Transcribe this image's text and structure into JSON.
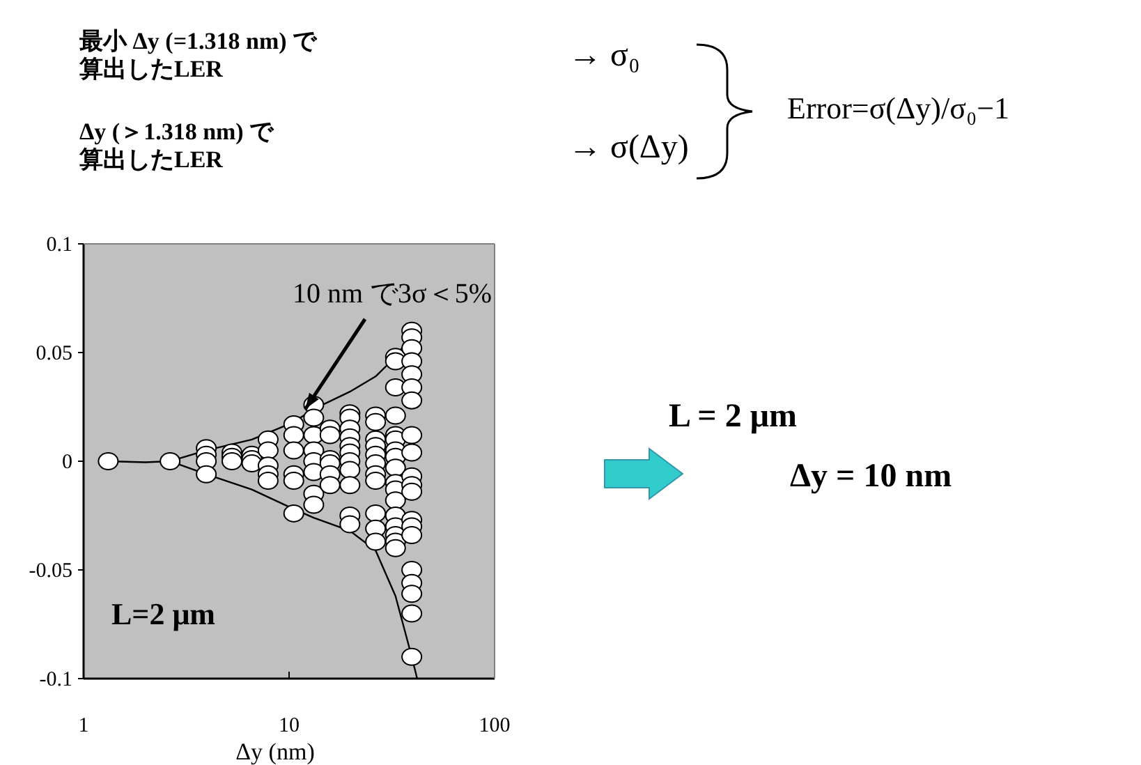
{
  "chart_data": {
    "type": "scatter",
    "xlabel": "Δy (nm)",
    "log": "x",
    "xlim": [
      1,
      100
    ],
    "xticks": [
      1,
      10,
      100
    ],
    "ylim": [
      -0.1,
      0.1
    ],
    "yticks": [
      -0.1,
      -0.05,
      0,
      0.05,
      0.1
    ],
    "grid": false,
    "series": [
      {
        "color": "#ffffff",
        "marker": "circle",
        "x": [
          1.318,
          2.636,
          3.954,
          3.954,
          3.954,
          3.954,
          5.272,
          5.272,
          5.272,
          6.59,
          6.59,
          6.59,
          7.908,
          7.908,
          7.908,
          7.908,
          7.908,
          10.54,
          10.54,
          10.54,
          10.54,
          10.54,
          10.54,
          13.18,
          13.18,
          13.18,
          13.18,
          13.18,
          13.18,
          13.18,
          13.18,
          15.82,
          15.82,
          15.82,
          15.82,
          15.82,
          15.82,
          19.77,
          19.77,
          19.77,
          19.77,
          19.77,
          19.77,
          19.77,
          19.77,
          19.77,
          19.77,
          19.77,
          26.36,
          26.36,
          26.36,
          26.36,
          26.36,
          26.36,
          26.36,
          26.36,
          26.36,
          26.36,
          26.36,
          32.95,
          32.95,
          32.95,
          32.95,
          32.95,
          32.95,
          32.95,
          32.95,
          32.95,
          32.95,
          32.95,
          32.95,
          32.95,
          32.95,
          32.95,
          32.95,
          32.95,
          39.54,
          39.54,
          39.54,
          39.54,
          39.54,
          39.54,
          39.54,
          39.54,
          39.54,
          39.54,
          39.54,
          39.54,
          39.54,
          39.54,
          39.54,
          39.54,
          39.54,
          39.54,
          39.54,
          39.54
        ],
        "values": [
          0,
          0,
          0.006,
          0.003,
          0,
          -0.006,
          0.004,
          0.002,
          0,
          0.003,
          0.001,
          -0.001,
          0.01,
          0.005,
          -0.002,
          -0.006,
          -0.009,
          0.017,
          0.012,
          0.005,
          -0.006,
          -0.009,
          -0.024,
          0.026,
          0.02,
          0.012,
          0.005,
          0,
          -0.005,
          -0.015,
          -0.02,
          0.015,
          0.012,
          0.001,
          -0.001,
          -0.006,
          -0.011,
          0.022,
          0.02,
          0.015,
          0.011,
          0.007,
          0.004,
          0,
          -0.004,
          -0.011,
          -0.025,
          -0.029,
          0.021,
          0.018,
          0.01,
          0.007,
          0.003,
          -0.001,
          -0.006,
          -0.009,
          -0.024,
          -0.031,
          -0.037,
          0.048,
          0.046,
          0.034,
          0.021,
          0.012,
          0.01,
          0.005,
          0.002,
          -0.003,
          -0.01,
          -0.013,
          -0.018,
          -0.025,
          -0.03,
          -0.034,
          -0.037,
          -0.04,
          0.06,
          0.057,
          0.052,
          0.046,
          0.04,
          0.034,
          0.028,
          0.012,
          0.004,
          -0.007,
          -0.011,
          -0.014,
          -0.027,
          -0.03,
          -0.034,
          -0.05,
          -0.056,
          -0.061,
          -0.07,
          -0.09
        ]
      },
      {
        "type": "line",
        "color": "#000000",
        "marker": "none",
        "x": [
          1.318,
          2,
          2.636,
          3.954,
          6.59,
          10.54,
          13.18,
          19.77,
          26.36,
          32.95,
          39.54
        ],
        "values": [
          0,
          -0.0005,
          0,
          0.005,
          0.01,
          0.018,
          0.024,
          0.032,
          0.039,
          0.048,
          0.058
        ]
      },
      {
        "type": "line",
        "color": "#000000",
        "marker": "none",
        "x": [
          2.636,
          3.954,
          6.59,
          10.54,
          13.18,
          19.77,
          26.36,
          32.95,
          39.54,
          42
        ],
        "values": [
          0,
          -0.006,
          -0.013,
          -0.022,
          -0.026,
          -0.032,
          -0.041,
          -0.062,
          -0.09,
          -0.1
        ]
      }
    ],
    "annotations": [
      {
        "text": "10 nm で3σ＜5%",
        "x": 12,
        "y": 0.024
      },
      "L=2 μm",
      "最小 Δy (=1.318 nm) で",
      "算出したLER",
      "→ σ₀",
      "Δy (＞1.318 nm) で",
      "算出したLER",
      "→ σ(Δy)",
      "Error=σ(Δy)/σ₀−1",
      "L = 2 μm",
      "Δy = 10 nm"
    ]
  }
}
